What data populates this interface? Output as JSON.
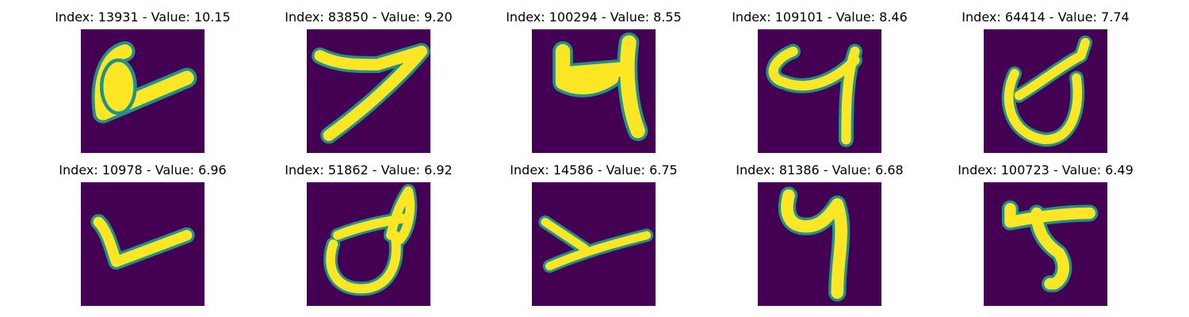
{
  "colors": {
    "background": "#440154",
    "edge": "#21918c",
    "edge_light": "#5ec962",
    "stroke": "#fde725"
  },
  "panels": [
    {
      "index": "13931",
      "value": "10.15",
      "title": "Index: 13931 - Value: 10.15"
    },
    {
      "index": "83850",
      "value": "9.20",
      "title": "Index: 83850 - Value: 9.20"
    },
    {
      "index": "100294",
      "value": "8.55",
      "title": "Index: 100294 - Value: 8.55"
    },
    {
      "index": "109101",
      "value": "8.46",
      "title": "Index: 109101 - Value: 8.46"
    },
    {
      "index": "64414",
      "value": "7.74",
      "title": "Index: 64414 - Value: 7.74"
    },
    {
      "index": "10978",
      "value": "6.96",
      "title": "Index: 10978 - Value: 6.96"
    },
    {
      "index": "51862",
      "value": "6.92",
      "title": "Index: 51862 - Value: 6.92"
    },
    {
      "index": "14586",
      "value": "6.75",
      "title": "Index: 14586 - Value: 6.75"
    },
    {
      "index": "81386",
      "value": "6.68",
      "title": "Index: 81386 - Value: 6.68"
    },
    {
      "index": "100723",
      "value": "6.49",
      "title": "Index: 100723 - Value: 6.49"
    }
  ]
}
